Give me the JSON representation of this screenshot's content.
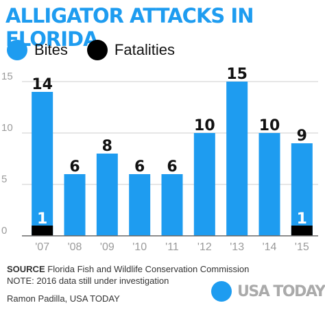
{
  "colors": {
    "bites": "#1e9cf0",
    "fatalities": "#000000",
    "title": "#1e9cf0",
    "axis": "#9a9a9a",
    "grid": "#cccccc",
    "brand_text": "#aaaaaa"
  },
  "header": {
    "title": "ALLIGATOR ATTACKS IN FLORIDA"
  },
  "legend": [
    {
      "label": "Bites",
      "color": "#1e9cf0"
    },
    {
      "label": "Fatalities",
      "color": "#000000"
    }
  ],
  "footer": {
    "source_label": "SOURCE",
    "source_text": "Florida Fish and Wildlife Conservation Commission",
    "note": "NOTE: 2016 data still under investigation",
    "credit": "Ramon Padilla, USA TODAY"
  },
  "brand": {
    "text": "USA TODAY",
    "dot_color": "#1e9cf0"
  },
  "chart_data": {
    "type": "bar",
    "title": "ALLIGATOR ATTACKS IN FLORIDA",
    "categories": [
      "'07",
      "'08",
      "'09",
      "'10",
      "'11",
      "'12",
      "'13",
      "'14",
      "'15"
    ],
    "series": [
      {
        "name": "Bites",
        "values": [
          14,
          6,
          8,
          6,
          6,
          10,
          15,
          10,
          9
        ]
      },
      {
        "name": "Fatalities",
        "values": [
          1,
          0,
          0,
          0,
          0,
          0,
          0,
          0,
          1
        ]
      }
    ],
    "data_labels": [
      "14",
      "6",
      "8",
      "6",
      "6",
      "10",
      "15",
      "10",
      "9"
    ],
    "fatality_labels": [
      "1",
      "",
      "",
      "",
      "",
      "",
      "",
      "",
      "1"
    ],
    "yticks": [
      "0",
      "5",
      "10",
      "15"
    ],
    "ylim": [
      0,
      15
    ],
    "grid": true,
    "legend_position": "top-left"
  }
}
